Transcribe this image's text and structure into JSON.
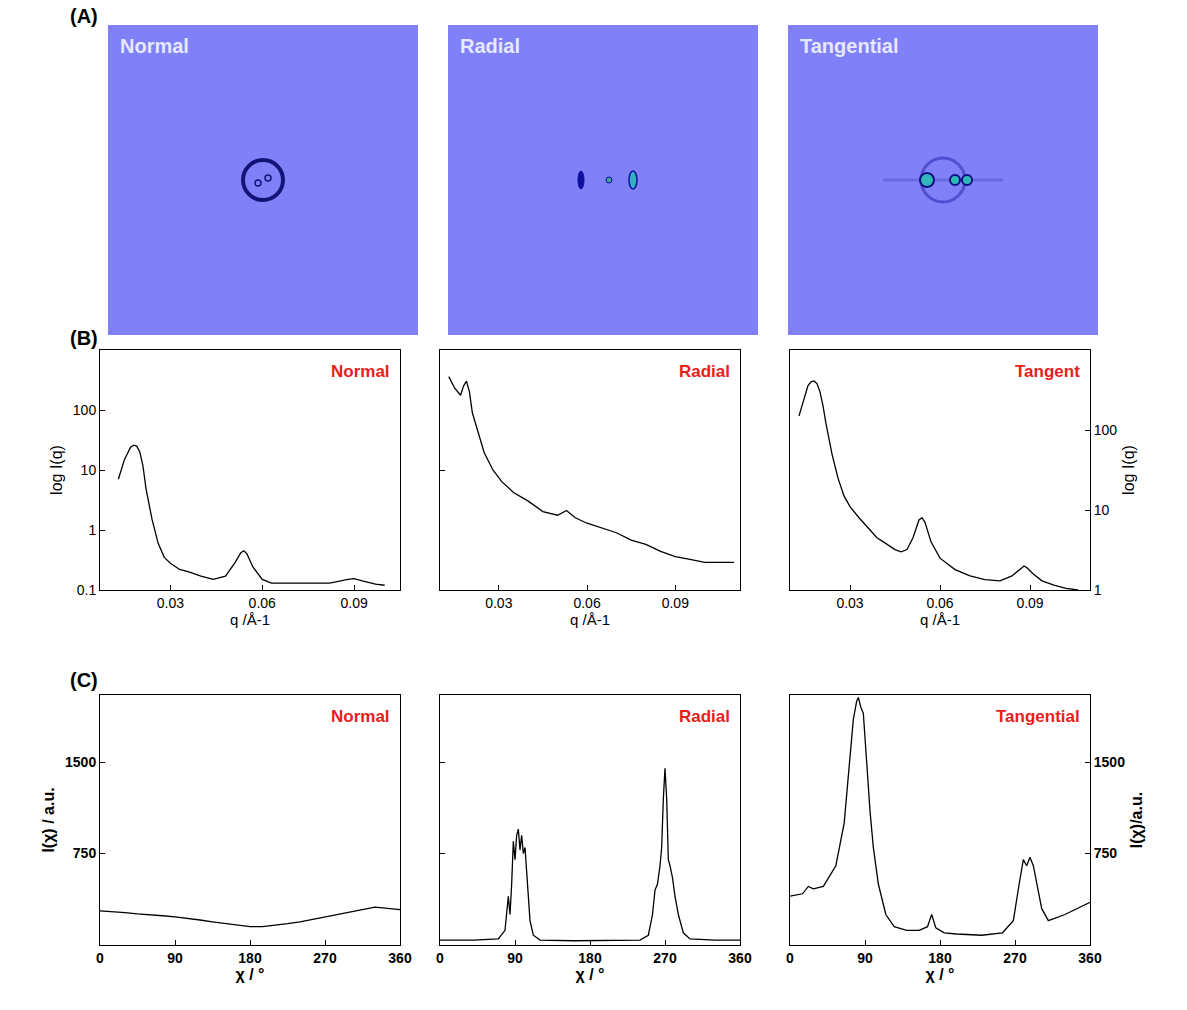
{
  "panel_labels": [
    "(A)",
    "(B)",
    "(C)"
  ],
  "images": {
    "titles": [
      "Normal",
      "Radial",
      "Tangential"
    ]
  },
  "chart_data": [
    {
      "type": "line",
      "title": "Normal",
      "x_label": "q /Å-1",
      "y_label": "log I(q)",
      "log": "y",
      "grid": false,
      "color": "#000000",
      "x": [
        0.013,
        0.015,
        0.017,
        0.018,
        0.019,
        0.02,
        0.021,
        0.022,
        0.024,
        0.026,
        0.028,
        0.03,
        0.033,
        0.036,
        0.04,
        0.044,
        0.048,
        0.051,
        0.053,
        0.054,
        0.055,
        0.057,
        0.06,
        0.063,
        0.068,
        0.075,
        0.082,
        0.088,
        0.09,
        0.093,
        0.097,
        0.1
      ],
      "values": [
        7,
        15,
        24,
        26,
        25,
        20,
        12,
        5,
        1.5,
        0.6,
        0.35,
        0.28,
        0.22,
        0.2,
        0.17,
        0.15,
        0.17,
        0.28,
        0.42,
        0.45,
        0.4,
        0.24,
        0.15,
        0.13,
        0.13,
        0.13,
        0.13,
        0.15,
        0.155,
        0.14,
        0.125,
        0.12
      ],
      "xlim": [
        0.007,
        0.105
      ],
      "ylim": [
        0.1,
        1000
      ],
      "xticks": [
        0.03,
        0.06,
        0.09
      ],
      "yticks": [
        0.1,
        1,
        10,
        100
      ]
    },
    {
      "type": "line",
      "title": "Radial",
      "x_label": "q /Å-1",
      "log": "y",
      "grid": false,
      "color": "#000000",
      "tick_labels": "x",
      "x": [
        0.013,
        0.015,
        0.017,
        0.018,
        0.019,
        0.02,
        0.021,
        0.023,
        0.025,
        0.028,
        0.031,
        0.035,
        0.04,
        0.045,
        0.05,
        0.053,
        0.056,
        0.06,
        0.065,
        0.07,
        0.075,
        0.08,
        0.085,
        0.09,
        0.095,
        0.1,
        0.105,
        0.11
      ],
      "values": [
        60,
        48,
        42,
        50,
        55,
        45,
        30,
        20,
        14,
        10,
        8,
        6.5,
        5.5,
        4.5,
        4.2,
        4.6,
        4.0,
        3.6,
        3.3,
        3.0,
        2.6,
        2.4,
        2.1,
        1.9,
        1.8,
        1.7,
        1.7,
        1.7
      ],
      "xlim": [
        0.01,
        0.112
      ],
      "ylim": [
        1,
        100
      ],
      "xticks": [
        0.03,
        0.06,
        0.09
      ],
      "yticks": [
        1,
        10,
        100
      ]
    },
    {
      "type": "line",
      "title": "Tangent",
      "x_label": "q /Å-1",
      "y_label": "log I(q)",
      "log": "y",
      "grid": false,
      "color": "#000000",
      "x": [
        0.013,
        0.015,
        0.016,
        0.017,
        0.018,
        0.019,
        0.02,
        0.021,
        0.022,
        0.024,
        0.026,
        0.028,
        0.03,
        0.033,
        0.036,
        0.039,
        0.042,
        0.045,
        0.047,
        0.049,
        0.051,
        0.052,
        0.053,
        0.054,
        0.055,
        0.057,
        0.06,
        0.065,
        0.07,
        0.075,
        0.08,
        0.084,
        0.087,
        0.088,
        0.089,
        0.091,
        0.094,
        0.098,
        0.102,
        0.106
      ],
      "values": [
        150,
        280,
        360,
        400,
        410,
        380,
        300,
        200,
        120,
        50,
        25,
        15,
        11,
        8,
        6,
        4.5,
        3.8,
        3.2,
        3.0,
        3.2,
        4.5,
        6,
        7.5,
        8,
        7,
        4,
        2.5,
        1.8,
        1.5,
        1.35,
        1.3,
        1.5,
        1.9,
        2.0,
        1.9,
        1.6,
        1.3,
        1.15,
        1.05,
        1.0
      ],
      "xlim": [
        0.01,
        0.11
      ],
      "ylim": [
        1,
        1000
      ],
      "xticks": [
        0.03,
        0.06,
        0.09
      ],
      "yticks": [
        1,
        10,
        100
      ]
    },
    {
      "type": "line",
      "title": "Normal",
      "x_label": "χ / °",
      "y_label": "I(χ) / a.u.",
      "grid": false,
      "color": "#000000",
      "x": [
        0,
        15,
        30,
        45,
        60,
        75,
        90,
        105,
        120,
        135,
        150,
        165,
        180,
        195,
        210,
        225,
        240,
        255,
        270,
        285,
        300,
        315,
        330,
        345,
        360
      ],
      "values": [
        280,
        275,
        265,
        255,
        250,
        240,
        230,
        220,
        205,
        190,
        175,
        160,
        150,
        150,
        160,
        175,
        190,
        210,
        230,
        250,
        270,
        290,
        310,
        300,
        290
      ],
      "xlim": [
        0,
        360
      ],
      "ylim": [
        0,
        2050
      ],
      "xticks": [
        0,
        90,
        180,
        270,
        360
      ],
      "yticks": [
        750,
        1500
      ]
    },
    {
      "type": "line",
      "title": "Radial",
      "x_label": "χ / °",
      "grid": false,
      "color": "#000000",
      "tick_labels": "x",
      "x": [
        0,
        40,
        70,
        78,
        82,
        84,
        86,
        88,
        90,
        92,
        94,
        96,
        98,
        100,
        102,
        104,
        106,
        108,
        112,
        120,
        160,
        200,
        240,
        250,
        255,
        258,
        261,
        264,
        266,
        268,
        270,
        272,
        274,
        276,
        279,
        282,
        286,
        292,
        300,
        330,
        360
      ],
      "values": [
        40,
        40,
        50,
        120,
        400,
        250,
        500,
        850,
        700,
        900,
        950,
        780,
        900,
        750,
        800,
        600,
        350,
        200,
        80,
        40,
        35,
        35,
        40,
        80,
        250,
        450,
        500,
        650,
        800,
        1200,
        1450,
        1200,
        700,
        650,
        550,
        400,
        250,
        100,
        50,
        40,
        40
      ],
      "xlim": [
        0,
        360
      ],
      "ylim": [
        0,
        2050
      ],
      "xticks": [
        0,
        90,
        180,
        270,
        360
      ],
      "yticks": [
        750,
        1500
      ]
    },
    {
      "type": "line",
      "title": "Tangential",
      "x_label": "χ / °",
      "y_label": "I(χ)/a.u.",
      "grid": false,
      "color": "#000000",
      "x": [
        0,
        15,
        22,
        28,
        40,
        55,
        65,
        72,
        76,
        80,
        82,
        85,
        88,
        92,
        96,
        100,
        106,
        115,
        125,
        140,
        155,
        165,
        170,
        175,
        185,
        200,
        230,
        255,
        268,
        275,
        280,
        284,
        288,
        292,
        296,
        302,
        310,
        330,
        360
      ],
      "values": [
        400,
        420,
        480,
        460,
        480,
        650,
        1000,
        1500,
        1850,
        2000,
        2030,
        1950,
        1900,
        1500,
        1100,
        800,
        500,
        250,
        150,
        120,
        120,
        150,
        250,
        140,
        100,
        90,
        80,
        100,
        200,
        500,
        700,
        650,
        720,
        650,
        500,
        300,
        200,
        250,
        350
      ],
      "xlim": [
        0,
        360
      ],
      "ylim": [
        0,
        2050
      ],
      "xticks": [
        0,
        90,
        180,
        270,
        360
      ],
      "yticks": [
        750,
        1500
      ]
    }
  ]
}
